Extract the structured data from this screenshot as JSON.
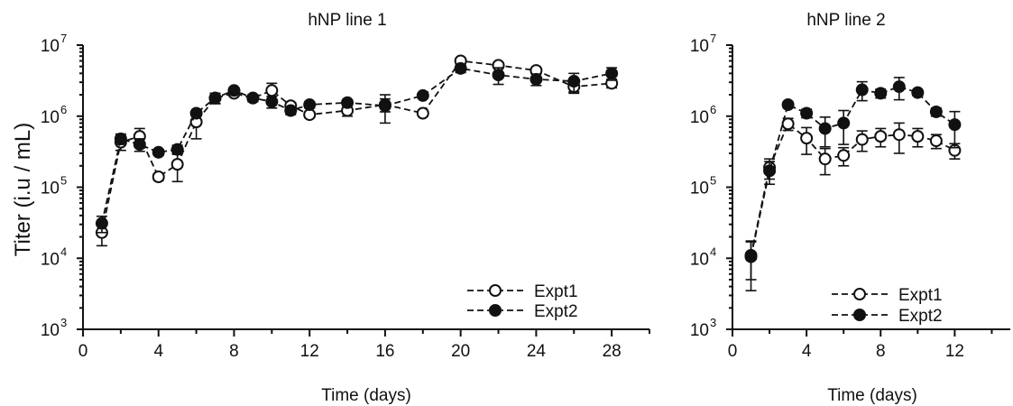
{
  "shared": {
    "ylabel": "Titer   (i.u / mL)",
    "y_tick_base": "10",
    "y_tick_exponents": [
      "3",
      "4",
      "5",
      "6",
      "7"
    ]
  },
  "chart_data": [
    {
      "type": "line",
      "title": "hNP line 1",
      "xlabel": "Time (days)",
      "ylabel": "Titer   (i.u / mL)",
      "y_scale": "log",
      "xlim": [
        0,
        30
      ],
      "ylim": [
        1000,
        10000000
      ],
      "x_ticks": [
        0,
        4,
        8,
        12,
        16,
        20,
        24,
        28
      ],
      "y_ticks": [
        1000,
        10000,
        100000,
        1000000,
        10000000
      ],
      "legend_position": "bottom-right",
      "series": [
        {
          "name": "Expt1",
          "marker": "open-circle",
          "line": "dashed",
          "x": [
            1,
            2,
            3,
            4,
            5,
            6,
            7,
            8,
            9,
            10,
            11,
            12,
            14,
            16,
            18,
            20,
            22,
            24,
            26,
            28
          ],
          "y": [
            23000,
            430000,
            520000,
            140000,
            210000,
            830000,
            1800000,
            2100000,
            1800000,
            2300000,
            1400000,
            1050000,
            1200000,
            1450000,
            1100000,
            6000000,
            5200000,
            4400000,
            2600000,
            2900000
          ],
          "err": [
            8000,
            100000,
            150000,
            15000,
            90000,
            350000,
            300000,
            200000,
            200000,
            600000,
            150000,
            100000,
            200000,
            300000,
            100000,
            500000,
            500000,
            400000,
            500000,
            400000
          ]
        },
        {
          "name": "Expt2",
          "marker": "filled-circle",
          "line": "dashed",
          "x": [
            1,
            2,
            3,
            4,
            5,
            6,
            7,
            8,
            9,
            10,
            11,
            12,
            14,
            16,
            18,
            20,
            22,
            24,
            26,
            28
          ],
          "y": [
            31000,
            480000,
            400000,
            310000,
            340000,
            1100000,
            1800000,
            2300000,
            1800000,
            1600000,
            1200000,
            1450000,
            1550000,
            1400000,
            1950000,
            4700000,
            3800000,
            3300000,
            3100000,
            4000000
          ],
          "err": [
            8000,
            80000,
            80000,
            30000,
            50000,
            100000,
            300000,
            200000,
            200000,
            300000,
            150000,
            150000,
            150000,
            600000,
            150000,
            600000,
            1000000,
            600000,
            900000,
            800000
          ]
        }
      ]
    },
    {
      "type": "line",
      "title": "hNP line 2",
      "xlabel": "Time (days)",
      "ylabel": "",
      "y_scale": "log",
      "xlim": [
        0,
        15
      ],
      "ylim": [
        1000,
        10000000
      ],
      "x_ticks": [
        0,
        4,
        8,
        12
      ],
      "y_ticks": [
        1000,
        10000,
        100000,
        1000000,
        10000000
      ],
      "legend_position": "bottom-right",
      "series": [
        {
          "name": "Expt1",
          "marker": "open-circle",
          "line": "dashed",
          "x": [
            1,
            2,
            3,
            4,
            5,
            6,
            7,
            8,
            9,
            10,
            11,
            12
          ],
          "y": [
            11000,
            190000,
            780000,
            490000,
            250000,
            280000,
            470000,
            520000,
            550000,
            520000,
            450000,
            330000
          ],
          "err": [
            6000,
            60000,
            150000,
            200000,
            100000,
            80000,
            150000,
            150000,
            250000,
            150000,
            100000,
            80000
          ]
        },
        {
          "name": "Expt2",
          "marker": "filled-circle",
          "line": "dashed",
          "x": [
            1,
            2,
            3,
            4,
            5,
            6,
            7,
            8,
            9,
            10,
            11,
            12
          ],
          "y": [
            10500,
            170000,
            1450000,
            1100000,
            670000,
            800000,
            2350000,
            2100000,
            2600000,
            2150000,
            1150000,
            760000
          ],
          "err": [
            7000,
            60000,
            150000,
            150000,
            300000,
            400000,
            700000,
            300000,
            900000,
            200000,
            150000,
            400000
          ]
        }
      ]
    }
  ]
}
